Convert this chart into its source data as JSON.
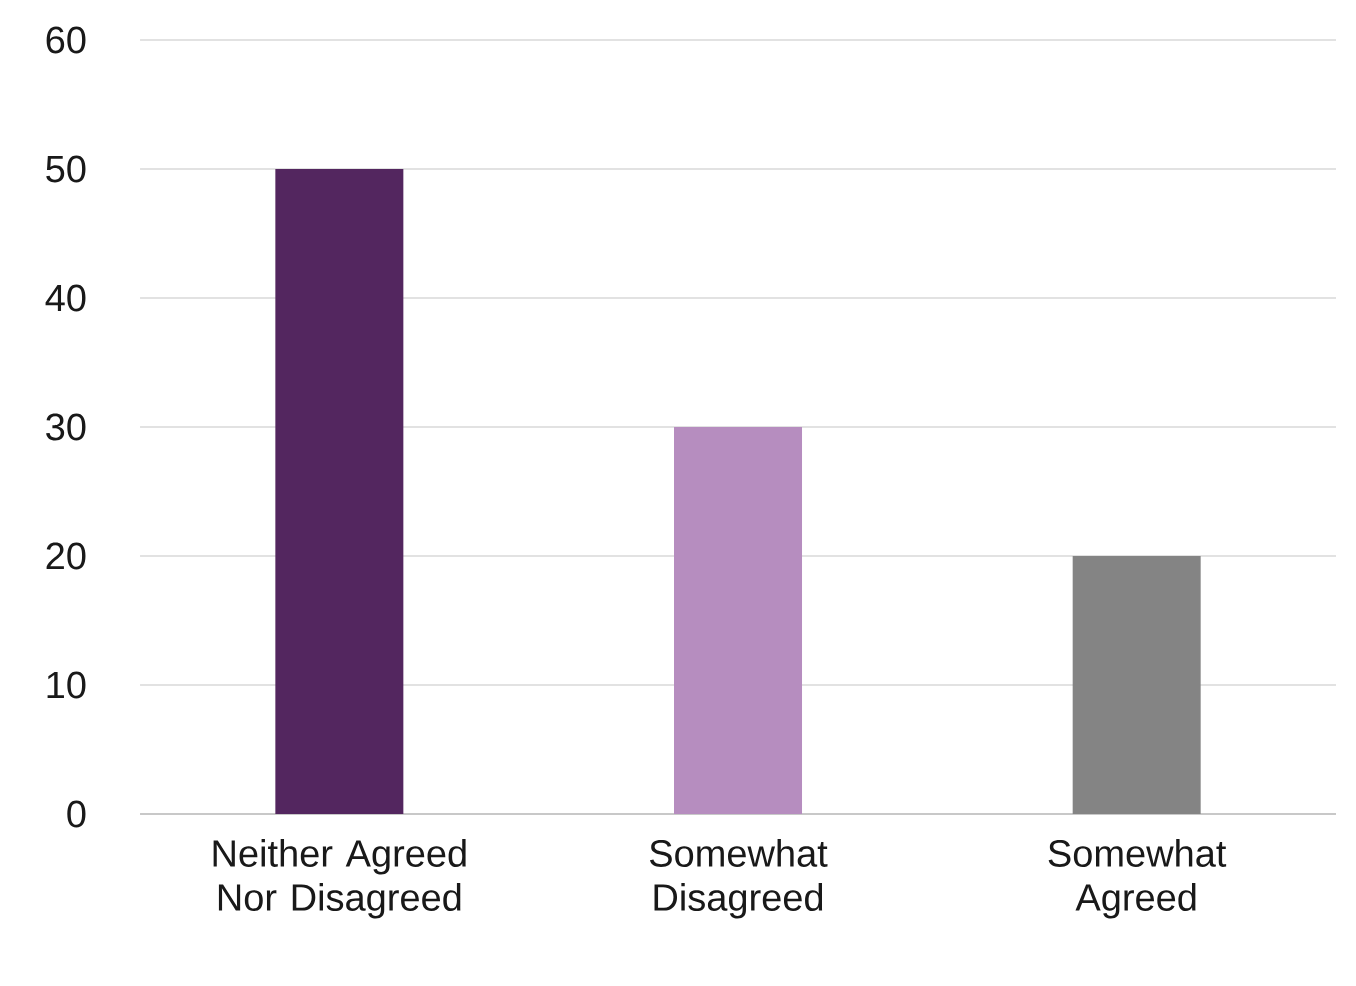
{
  "chart_data": {
    "type": "bar",
    "categories": [
      "Neither Agreed Nor Disagreed",
      "Somewhat Disagreed",
      "Somewhat Agreed"
    ],
    "values": [
      50,
      30,
      20
    ],
    "colors": [
      "#53265f",
      "#b68dbf",
      "#848484"
    ],
    "ylim": [
      0,
      60
    ],
    "yticks": [
      0,
      10,
      20,
      30,
      40,
      50,
      60
    ],
    "grid": "y"
  }
}
